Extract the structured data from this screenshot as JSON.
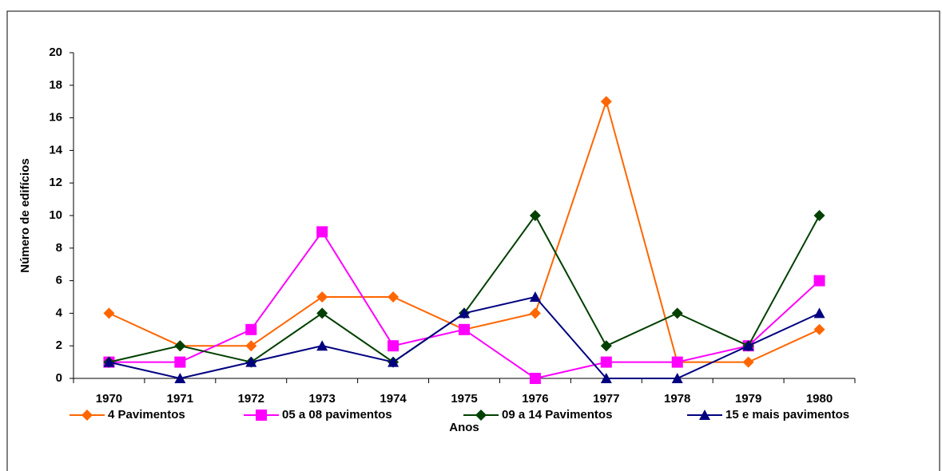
{
  "chart_data": {
    "type": "line",
    "x_label": "Anos",
    "y_label": "Número de edifícios",
    "categories": [
      "1970",
      "1971",
      "1972",
      "1973",
      "1974",
      "1975",
      "1976",
      "1977",
      "1978",
      "1979",
      "1980"
    ],
    "series": [
      {
        "name": "4 Pavimentos",
        "color": "#ff6600",
        "marker": "diamond",
        "values": [
          4,
          2,
          2,
          5,
          5,
          3,
          4,
          17,
          1,
          1,
          3
        ]
      },
      {
        "name": "05 a 08 pavimentos",
        "color": "#ff00ff",
        "marker": "square",
        "values": [
          1,
          1,
          3,
          9,
          2,
          3,
          0,
          1,
          1,
          2,
          6
        ]
      },
      {
        "name": "09 a 14 Pavimentos",
        "color": "#004000",
        "marker": "diamond",
        "values": [
          1,
          2,
          1,
          4,
          1,
          4,
          10,
          2,
          4,
          2,
          10
        ]
      },
      {
        "name": "15 e mais pavimentos",
        "color": "#000080",
        "marker": "triangle",
        "values": [
          1,
          0,
          1,
          2,
          1,
          4,
          5,
          0,
          0,
          2,
          4
        ]
      }
    ],
    "ylim": [
      0,
      20
    ],
    "yticks": [
      0,
      2,
      4,
      6,
      8,
      10,
      12,
      14,
      16,
      18,
      20
    ],
    "legend": "bottom"
  }
}
